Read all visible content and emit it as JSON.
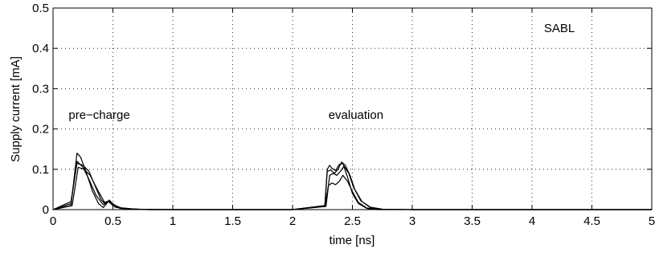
{
  "chart_data": {
    "type": "line",
    "xlabel": "time [ns]",
    "ylabel": "Supply current [mA]",
    "xlim": [
      0,
      5
    ],
    "ylim": [
      0,
      0.5
    ],
    "xticks": [
      "0",
      "0.5",
      "1",
      "1.5",
      "2",
      "2.5",
      "3",
      "3.5",
      "4",
      "4.5",
      "5"
    ],
    "yticks": [
      "0",
      "0.1",
      "0.2",
      "0.3",
      "0.4",
      "0.5"
    ],
    "grid": true,
    "annotations": [
      {
        "text": "pre−charge",
        "x": 0.13,
        "y": 0.225
      },
      {
        "text": "evaluation",
        "x": 2.3,
        "y": 0.225
      },
      {
        "text": "SABL",
        "x": 4.1,
        "y": 0.44
      }
    ],
    "series": [
      {
        "x": [
          0,
          0.15,
          0.2,
          0.23,
          0.28,
          0.33,
          0.38,
          0.42,
          0.46,
          0.48,
          0.52,
          0.6,
          0.8,
          1.0,
          2.0,
          2.27,
          2.29,
          2.31,
          2.33,
          2.36,
          2.39,
          2.42,
          2.46,
          2.5,
          2.55,
          2.62,
          2.7,
          3.0,
          5.0
        ],
        "y": [
          0,
          0.01,
          0.14,
          0.13,
          0.09,
          0.045,
          0.015,
          0.005,
          0.02,
          0.018,
          0.006,
          0.002,
          0,
          0,
          0,
          0.01,
          0.1,
          0.11,
          0.102,
          0.097,
          0.112,
          0.115,
          0.08,
          0.04,
          0.015,
          0.003,
          0,
          0,
          0
        ]
      },
      {
        "x": [
          0,
          0.15,
          0.2,
          0.25,
          0.3,
          0.35,
          0.4,
          0.44,
          0.47,
          0.5,
          0.55,
          0.65,
          0.8,
          1.0,
          2.0,
          2.27,
          2.29,
          2.32,
          2.35,
          2.38,
          2.41,
          2.44,
          2.48,
          2.52,
          2.58,
          2.65,
          2.75,
          3.0,
          5.0
        ],
        "y": [
          0,
          0.02,
          0.115,
          0.11,
          0.095,
          0.06,
          0.025,
          0.012,
          0.024,
          0.014,
          0.005,
          0.002,
          0,
          0,
          0,
          0.01,
          0.095,
          0.098,
          0.09,
          0.1,
          0.118,
          0.11,
          0.085,
          0.05,
          0.02,
          0.006,
          0.001,
          0,
          0
        ]
      },
      {
        "x": [
          0,
          0.15,
          0.2,
          0.25,
          0.3,
          0.36,
          0.42,
          0.46,
          0.5,
          0.56,
          0.7,
          1.0,
          2.0,
          2.27,
          2.3,
          2.33,
          2.36,
          2.39,
          2.42,
          2.46,
          2.5,
          2.55,
          2.62,
          2.7,
          3.0,
          5.0
        ],
        "y": [
          0,
          0.015,
          0.12,
          0.105,
          0.075,
          0.035,
          0.012,
          0.021,
          0.01,
          0.003,
          0.001,
          0,
          0,
          0.008,
          0.06,
          0.066,
          0.062,
          0.07,
          0.085,
          0.07,
          0.045,
          0.018,
          0.004,
          0.001,
          0,
          0
        ]
      },
      {
        "x": [
          0,
          0.16,
          0.21,
          0.26,
          0.31,
          0.37,
          0.43,
          0.47,
          0.51,
          0.57,
          0.7,
          1.0,
          2.0,
          2.28,
          2.31,
          2.34,
          2.37,
          2.4,
          2.43,
          2.47,
          2.51,
          2.57,
          2.65,
          2.75,
          3.0,
          5.0
        ],
        "y": [
          0,
          0.01,
          0.105,
          0.1,
          0.085,
          0.05,
          0.018,
          0.022,
          0.012,
          0.004,
          0.001,
          0,
          0,
          0.008,
          0.085,
          0.09,
          0.085,
          0.095,
          0.108,
          0.09,
          0.055,
          0.022,
          0.005,
          0.001,
          0,
          0
        ]
      }
    ]
  }
}
